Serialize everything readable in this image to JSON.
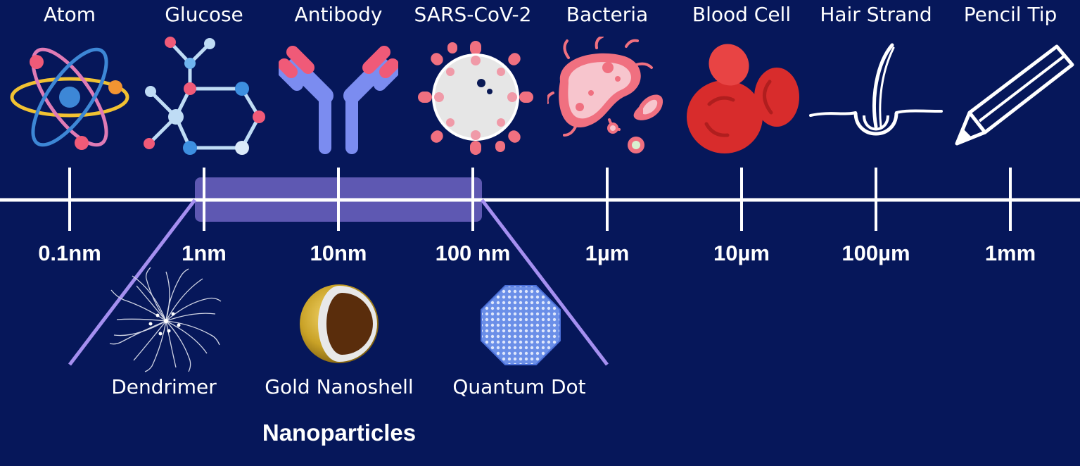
{
  "items": [
    {
      "label": "Atom",
      "scale": "0.1nm",
      "icon": "atom-icon"
    },
    {
      "label": "Glucose",
      "scale": "1nm",
      "icon": "glucose-molecule-icon"
    },
    {
      "label": "Antibody",
      "scale": "10nm",
      "icon": "antibody-icon"
    },
    {
      "label": "SARS-CoV-2",
      "scale": "100 nm",
      "icon": "virus-icon"
    },
    {
      "label": "Bacteria",
      "scale": "1µm",
      "icon": "bacteria-icon"
    },
    {
      "label": "Blood Cell",
      "scale": "10µm",
      "icon": "blood-cell-icon"
    },
    {
      "label": "Hair Strand",
      "scale": "100µm",
      "icon": "hair-strand-icon"
    },
    {
      "label": "Pencil Tip",
      "scale": "1mm",
      "icon": "pencil-tip-icon"
    }
  ],
  "nanoparticles": {
    "title": "Nanoparticles",
    "items": [
      {
        "label": "Dendrimer",
        "icon": "dendrimer-icon"
      },
      {
        "label": "Gold Nanoshell",
        "icon": "gold-nanoshell-icon"
      },
      {
        "label": "Quantum Dot",
        "icon": "quantum-dot-icon"
      }
    ]
  },
  "colors": {
    "background": "#06175a",
    "axis": "#ffffff",
    "highlight": "#7c6fd0",
    "funnel": "#a58ff0"
  }
}
